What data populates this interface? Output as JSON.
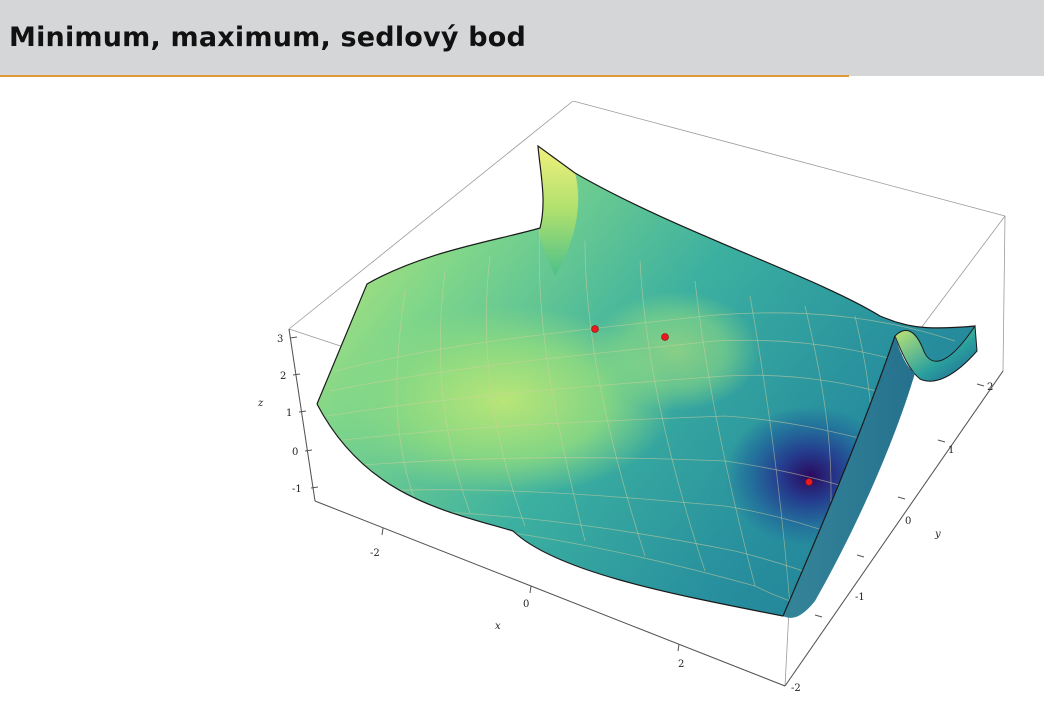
{
  "slide": {
    "title": "Minimum, maximum, sedlový bod"
  },
  "colors": {
    "header_bg": "#d5d6d8",
    "accent_line": "#e09a3c",
    "critical_point": "#e8191f"
  },
  "plot": {
    "z_axis": {
      "label": "z",
      "ticks": [
        "3",
        "2",
        "1",
        "0",
        "-1"
      ]
    },
    "x_axis": {
      "label": "x",
      "ticks": [
        "-2",
        "0",
        "2"
      ]
    },
    "y_axis": {
      "label": "y",
      "ticks": [
        "2",
        "1",
        "0",
        "-1",
        "-2"
      ]
    },
    "colormap": [
      "#30045f",
      "#2a5fa3",
      "#2a9aa3",
      "#4cc08a",
      "#a9e06a",
      "#f3f28a"
    ],
    "critical_points": [
      "saddle",
      "maximum",
      "minimum"
    ]
  }
}
